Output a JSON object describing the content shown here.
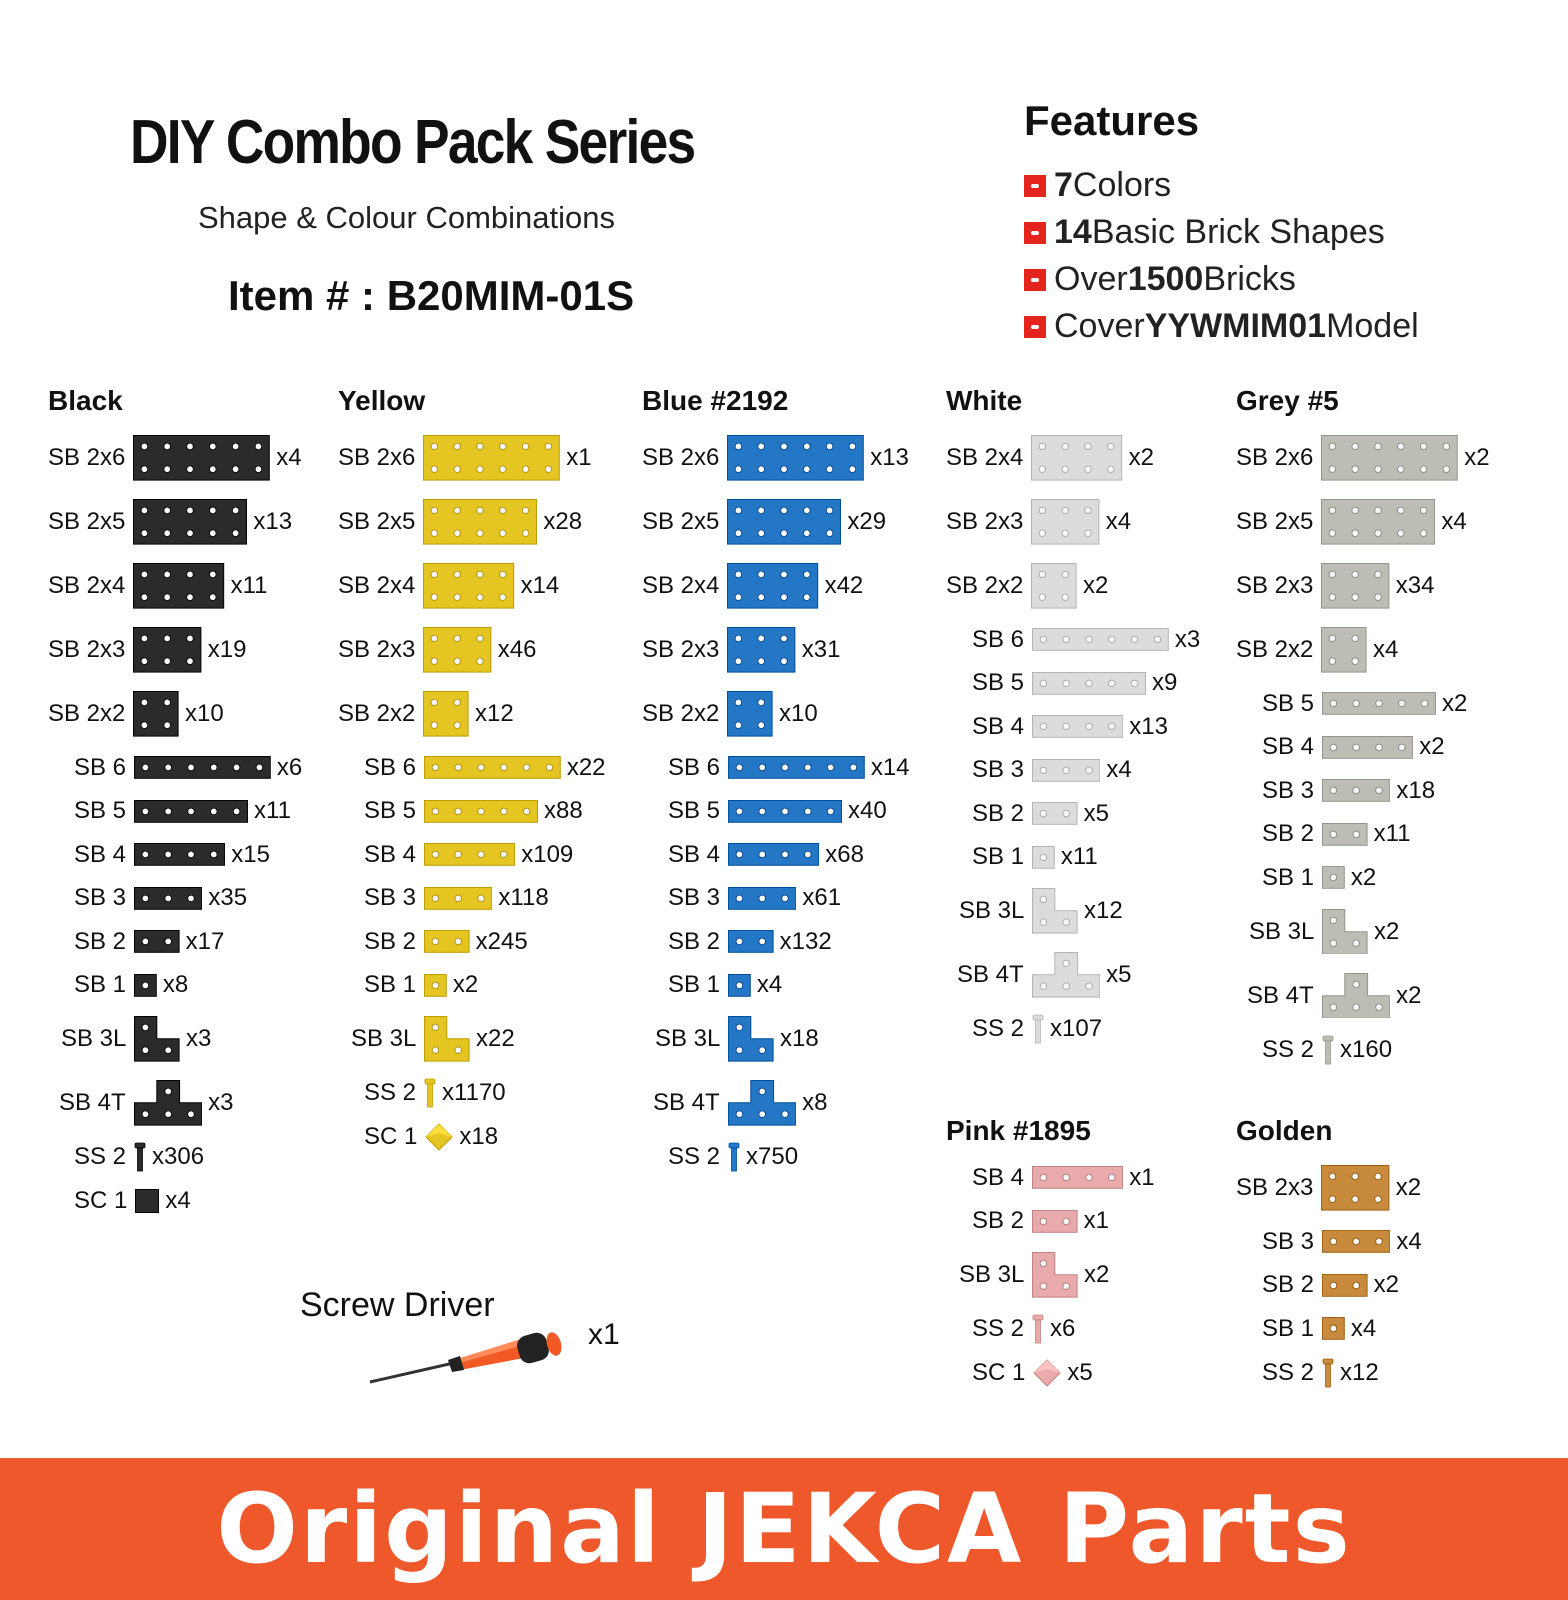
{
  "header": {
    "title": "DIY Combo Pack Series",
    "subtitle": "Shape & Colour Combinations",
    "item_number": "Item # : B20MIM-01S"
  },
  "features": {
    "title": "Features",
    "items": [
      {
        "bold": "7",
        "text": " Colors"
      },
      {
        "bold": "14",
        "text": " Basic Brick Shapes"
      },
      {
        "pre": "Over ",
        "bold": "1500",
        "text": " Bricks"
      },
      {
        "pre": "Cover ",
        "bold": "YYWMIM01",
        "text": " Model"
      }
    ],
    "bullet_color": "#e3241f"
  },
  "colors": [
    {
      "name": "Black",
      "color": "#2b2b2b",
      "parts": [
        {
          "label": "SB 2x6",
          "qty": "x4",
          "shape": "plate",
          "w": 6,
          "h": 2
        },
        {
          "label": "SB 2x5",
          "qty": "x13",
          "shape": "plate",
          "w": 5,
          "h": 2
        },
        {
          "label": "SB 2x4",
          "qty": "x11",
          "shape": "plate",
          "w": 4,
          "h": 2
        },
        {
          "label": "SB 2x3",
          "qty": "x19",
          "shape": "plate",
          "w": 3,
          "h": 2
        },
        {
          "label": "SB 2x2",
          "qty": "x10",
          "shape": "plate",
          "w": 2,
          "h": 2
        },
        {
          "label": "SB 6",
          "qty": "x6",
          "shape": "strip",
          "w": 6
        },
        {
          "label": "SB 5",
          "qty": "x11",
          "shape": "strip",
          "w": 5
        },
        {
          "label": "SB 4",
          "qty": "x15",
          "shape": "strip",
          "w": 4
        },
        {
          "label": "SB 3",
          "qty": "x35",
          "shape": "strip",
          "w": 3
        },
        {
          "label": "SB 2",
          "qty": "x17",
          "shape": "strip",
          "w": 2
        },
        {
          "label": "SB 1",
          "qty": "x8",
          "shape": "strip",
          "w": 1
        },
        {
          "label": "SB 3L",
          "qty": "x3",
          "shape": "L"
        },
        {
          "label": "SB 4T",
          "qty": "x3",
          "shape": "T"
        },
        {
          "label": "SS 2",
          "qty": "x306",
          "shape": "screw"
        },
        {
          "label": "SC 1",
          "qty": "x4",
          "shape": "cube"
        }
      ]
    },
    {
      "name": "Yellow",
      "color": "#e5c521",
      "parts": [
        {
          "label": "SB 2x6",
          "qty": "x1",
          "shape": "plate",
          "w": 6,
          "h": 2
        },
        {
          "label": "SB 2x5",
          "qty": "x28",
          "shape": "plate",
          "w": 5,
          "h": 2
        },
        {
          "label": "SB 2x4",
          "qty": "x14",
          "shape": "plate",
          "w": 4,
          "h": 2
        },
        {
          "label": "SB 2x3",
          "qty": "x46",
          "shape": "plate",
          "w": 3,
          "h": 2
        },
        {
          "label": "SB 2x2",
          "qty": "x12",
          "shape": "plate",
          "w": 2,
          "h": 2
        },
        {
          "label": "SB 6",
          "qty": "x22",
          "shape": "strip",
          "w": 6
        },
        {
          "label": "SB 5",
          "qty": "x88",
          "shape": "strip",
          "w": 5
        },
        {
          "label": "SB 4",
          "qty": "x109",
          "shape": "strip",
          "w": 4
        },
        {
          "label": "SB 3",
          "qty": "x118",
          "shape": "strip",
          "w": 3
        },
        {
          "label": "SB 2",
          "qty": "x245",
          "shape": "strip",
          "w": 2
        },
        {
          "label": "SB 1",
          "qty": "x2",
          "shape": "strip",
          "w": 1
        },
        {
          "label": "SB 3L",
          "qty": "x22",
          "shape": "L"
        },
        {
          "label": "SS 2",
          "qty": "x1170",
          "shape": "screw"
        },
        {
          "label": "SC 1",
          "qty": "x18",
          "shape": "diamond"
        }
      ]
    },
    {
      "name": "Blue #2192",
      "color": "#2377c4",
      "parts": [
        {
          "label": "SB 2x6",
          "qty": "x13",
          "shape": "plate",
          "w": 6,
          "h": 2
        },
        {
          "label": "SB 2x5",
          "qty": "x29",
          "shape": "plate",
          "w": 5,
          "h": 2
        },
        {
          "label": "SB 2x4",
          "qty": "x42",
          "shape": "plate",
          "w": 4,
          "h": 2
        },
        {
          "label": "SB 2x3",
          "qty": "x31",
          "shape": "plate",
          "w": 3,
          "h": 2
        },
        {
          "label": "SB 2x2",
          "qty": "x10",
          "shape": "plate",
          "w": 2,
          "h": 2
        },
        {
          "label": "SB 6",
          "qty": "x14",
          "shape": "strip",
          "w": 6
        },
        {
          "label": "SB 5",
          "qty": "x40",
          "shape": "strip",
          "w": 5
        },
        {
          "label": "SB 4",
          "qty": "x68",
          "shape": "strip",
          "w": 4
        },
        {
          "label": "SB 3",
          "qty": "x61",
          "shape": "strip",
          "w": 3
        },
        {
          "label": "SB 2",
          "qty": "x132",
          "shape": "strip",
          "w": 2
        },
        {
          "label": "SB 1",
          "qty": "x4",
          "shape": "strip",
          "w": 1
        },
        {
          "label": "SB 3L",
          "qty": "x18",
          "shape": "L"
        },
        {
          "label": "SB 4T",
          "qty": "x8",
          "shape": "T"
        },
        {
          "label": "SS 2",
          "qty": "x750",
          "shape": "screw"
        }
      ]
    },
    {
      "name": "White",
      "color": "#dcdcdc",
      "parts": [
        {
          "label": "SB 2x4",
          "qty": "x2",
          "shape": "plate",
          "w": 4,
          "h": 2
        },
        {
          "label": "SB 2x3",
          "qty": "x4",
          "shape": "plate",
          "w": 3,
          "h": 2
        },
        {
          "label": "SB 2x2",
          "qty": "x2",
          "shape": "plate",
          "w": 2,
          "h": 2
        },
        {
          "label": "SB 6",
          "qty": "x3",
          "shape": "strip",
          "w": 6
        },
        {
          "label": "SB 5",
          "qty": "x9",
          "shape": "strip",
          "w": 5
        },
        {
          "label": "SB 4",
          "qty": "x13",
          "shape": "strip",
          "w": 4
        },
        {
          "label": "SB 3",
          "qty": "x4",
          "shape": "strip",
          "w": 3
        },
        {
          "label": "SB 2",
          "qty": "x5",
          "shape": "strip",
          "w": 2
        },
        {
          "label": "SB 1",
          "qty": "x11",
          "shape": "strip",
          "w": 1
        },
        {
          "label": "SB 3L",
          "qty": "x12",
          "shape": "L"
        },
        {
          "label": "SB 4T",
          "qty": "x5",
          "shape": "T"
        },
        {
          "label": "SS 2",
          "qty": "x107",
          "shape": "screw"
        }
      ]
    },
    {
      "name": "Grey #5",
      "color": "#bdbdb5",
      "parts": [
        {
          "label": "SB 2x6",
          "qty": "x2",
          "shape": "plate",
          "w": 6,
          "h": 2
        },
        {
          "label": "SB 2x5",
          "qty": "x4",
          "shape": "plate",
          "w": 5,
          "h": 2
        },
        {
          "label": "SB 2x3",
          "qty": "x34",
          "shape": "plate",
          "w": 3,
          "h": 2
        },
        {
          "label": "SB 2x2",
          "qty": "x4",
          "shape": "plate",
          "w": 2,
          "h": 2
        },
        {
          "label": "SB 5",
          "qty": "x2",
          "shape": "strip",
          "w": 5
        },
        {
          "label": "SB 4",
          "qty": "x2",
          "shape": "strip",
          "w": 4
        },
        {
          "label": "SB 3",
          "qty": "x18",
          "shape": "strip",
          "w": 3
        },
        {
          "label": "SB 2",
          "qty": "x11",
          "shape": "strip",
          "w": 2
        },
        {
          "label": "SB 1",
          "qty": "x2",
          "shape": "strip",
          "w": 1
        },
        {
          "label": "SB 3L",
          "qty": "x2",
          "shape": "L"
        },
        {
          "label": "SB 4T",
          "qty": "x2",
          "shape": "T"
        },
        {
          "label": "SS 2",
          "qty": "x160",
          "shape": "screw"
        }
      ]
    },
    {
      "name": "Pink #1895",
      "color": "#e8aaaa",
      "parts": [
        {
          "label": "SB 4",
          "qty": "x1",
          "shape": "strip",
          "w": 4
        },
        {
          "label": "SB 2",
          "qty": "x1",
          "shape": "strip",
          "w": 2
        },
        {
          "label": "SB 3L",
          "qty": "x2",
          "shape": "L"
        },
        {
          "label": "SS 2",
          "qty": "x6",
          "shape": "screw"
        },
        {
          "label": "SC 1",
          "qty": "x5",
          "shape": "diamond"
        }
      ]
    },
    {
      "name": "Golden",
      "color": "#c88a3c",
      "parts": [
        {
          "label": "SB 2x3",
          "qty": "x2",
          "shape": "plate",
          "w": 3,
          "h": 2
        },
        {
          "label": "SB 3",
          "qty": "x4",
          "shape": "strip",
          "w": 3
        },
        {
          "label": "SB 2",
          "qty": "x2",
          "shape": "strip",
          "w": 2
        },
        {
          "label": "SB 1",
          "qty": "x4",
          "shape": "strip",
          "w": 1
        },
        {
          "label": "SS 2",
          "qty": "x12",
          "shape": "screw"
        }
      ]
    }
  ],
  "tool": {
    "label": "Screw Driver",
    "qty": "x1",
    "icon": "screwdriver-icon",
    "handle_color": "#f15a24"
  },
  "banner": {
    "text": "Original JEKCA Parts",
    "color": "#ee582a"
  }
}
